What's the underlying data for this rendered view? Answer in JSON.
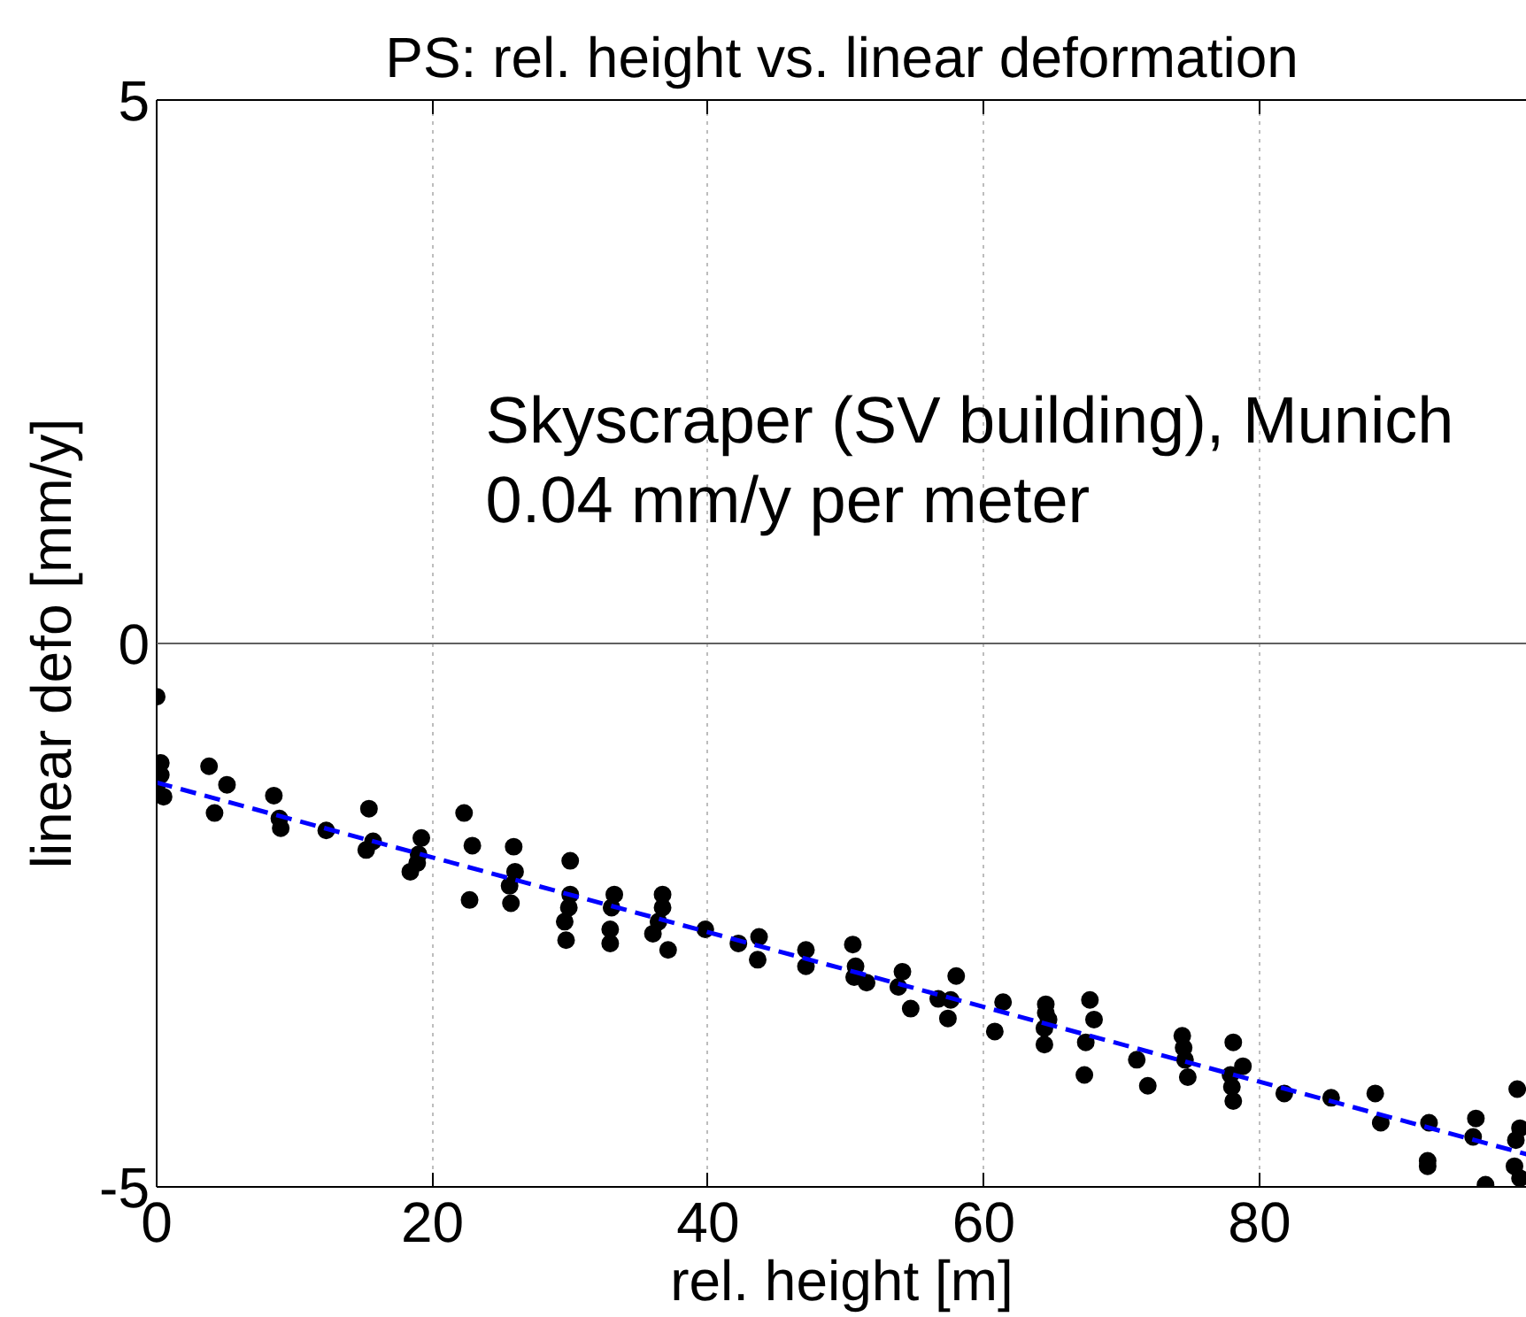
{
  "chart_data": {
    "type": "scatter",
    "title": "PS: rel. height vs. linear deformation",
    "xlabel": "rel. height [m]",
    "ylabel": "linear defo [mm/y]",
    "annotations": [
      "Skyscraper (SV building), Munich",
      "0.04 mm/y per meter"
    ],
    "xlim": [
      0,
      99.4
    ],
    "ylim": [
      -5,
      5
    ],
    "xticks": [
      0,
      20,
      40,
      60,
      80
    ],
    "yticks": [
      -5,
      0,
      5
    ],
    "grid": "x",
    "ref_lines": [
      {
        "axis": "y",
        "value": 0,
        "color": "#606060"
      }
    ],
    "series": [
      {
        "color": "#000000",
        "marker": "circle",
        "x": [
          0,
          0.3,
          0.3,
          0,
          0.5,
          3.8,
          5.1,
          4.2,
          8.5,
          8.9,
          9.0,
          12.3,
          15.4,
          15.7,
          15.2,
          19.2,
          19.0,
          18.9,
          18.4,
          22.3,
          22.9,
          22.7,
          25.9,
          26.0,
          25.6,
          25.7,
          30.0,
          30.0,
          29.9,
          29.6,
          29.7,
          33.2,
          33.0,
          32.9,
          32.9,
          36.7,
          36.7,
          36.4,
          36.0,
          37.1,
          39.8,
          42.2,
          43.7,
          43.6,
          47.1,
          47.1,
          50.5,
          50.7,
          50.6,
          51.5,
          54.1,
          53.8,
          54.7,
          58.0,
          56.7,
          57.6,
          57.4,
          61.4,
          60.8,
          64.5,
          64.5,
          64.4,
          64.4,
          64.7,
          67.7,
          68.0,
          67.4,
          67.3,
          71.1,
          71.9,
          74.4,
          74.5,
          74.6,
          74.8,
          78.1,
          78.8,
          77.9,
          78.0,
          78.1,
          81.8,
          85.2,
          88.4,
          88.8,
          92.3,
          92.2,
          92.2,
          95.7,
          95.5,
          96.4,
          98.7,
          98.9,
          98.6,
          98.5,
          98.9
        ],
        "values": [
          -0.49,
          -1.1,
          -1.21,
          -1.32,
          -1.41,
          -1.13,
          -1.3,
          -1.56,
          -1.4,
          -1.61,
          -1.7,
          -1.72,
          -1.52,
          -1.82,
          -1.9,
          -1.79,
          -1.94,
          -2.02,
          -2.1,
          -1.56,
          -1.86,
          -2.36,
          -1.87,
          -2.1,
          -2.23,
          -2.39,
          -2.0,
          -2.31,
          -2.43,
          -2.56,
          -2.73,
          -2.31,
          -2.43,
          -2.63,
          -2.76,
          -2.31,
          -2.43,
          -2.56,
          -2.67,
          -2.82,
          -2.63,
          -2.76,
          -2.7,
          -2.91,
          -2.82,
          -2.97,
          -2.77,
          -2.97,
          -3.07,
          -3.12,
          -3.02,
          -3.16,
          -3.36,
          -3.06,
          -3.27,
          -3.28,
          -3.45,
          -3.3,
          -3.57,
          -3.32,
          -3.4,
          -3.54,
          -3.69,
          -3.46,
          -3.28,
          -3.46,
          -3.67,
          -3.97,
          -3.83,
          -4.07,
          -3.61,
          -3.72,
          -3.83,
          -3.99,
          -3.67,
          -3.89,
          -3.97,
          -4.08,
          -4.21,
          -4.14,
          -4.18,
          -4.14,
          -4.41,
          -4.41,
          -4.76,
          -4.81,
          -4.37,
          -4.54,
          -4.98,
          -4.1,
          -4.46,
          -4.57,
          -4.81,
          -4.92
        ]
      },
      {
        "type": "line",
        "color": "#0000ff",
        "line_style": "dashed",
        "x": [
          0,
          99.4
        ],
        "values": [
          -1.28,
          -4.7
        ]
      }
    ]
  }
}
